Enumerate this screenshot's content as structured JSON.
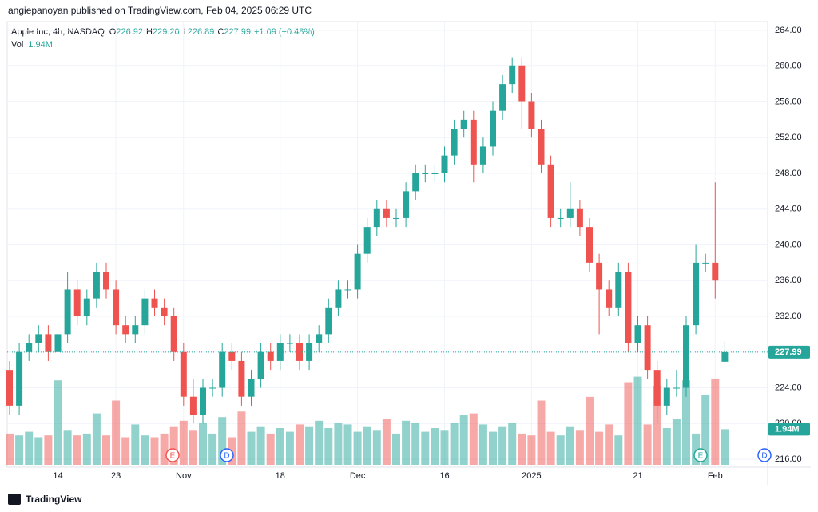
{
  "header": "angiepanoyan published on TradingView.com, Feb 04, 2025 06:29 UTC",
  "footer": "TradingView",
  "chart_data": {
    "type": "candlestick",
    "legend": {
      "symbol": "Apple Inc, 4h, NASDAQ",
      "fields": [
        {
          "key": "O",
          "value": "226.92"
        },
        {
          "key": "H",
          "value": "229.20"
        },
        {
          "key": "L",
          "value": "226.89"
        },
        {
          "key": "C",
          "value": "227.99"
        }
      ],
      "change": "+1.09 (+0.48%)",
      "volume_name": "Vol"
    },
    "volume_label": "1.94M",
    "up_color": "#26a69a",
    "down_color": "#ef5350",
    "open": [
      226,
      222,
      228,
      229,
      230,
      228,
      230,
      235,
      232,
      234,
      237,
      235,
      231,
      230,
      231,
      234,
      233,
      232,
      228,
      223,
      221,
      224,
      224,
      228,
      227,
      223,
      225,
      228,
      227,
      229,
      229,
      227,
      229,
      230,
      233,
      235,
      235,
      239,
      242,
      244,
      243,
      243,
      246,
      248,
      248,
      248,
      250,
      253,
      254,
      249,
      251,
      255,
      258,
      260,
      256,
      253,
      249,
      243,
      243,
      244,
      242,
      238,
      235,
      233,
      237,
      229,
      231,
      226,
      222,
      224,
      224,
      231,
      238,
      238,
      226.92
    ],
    "high": [
      227,
      229,
      230,
      231,
      231,
      231,
      237,
      236,
      235,
      238,
      238,
      236,
      232,
      232,
      235,
      235,
      234,
      233,
      229,
      225,
      225,
      225,
      229,
      229,
      228,
      226,
      229,
      229,
      230,
      230,
      230,
      230,
      231,
      234,
      236,
      236,
      240,
      243,
      245,
      245,
      244,
      247,
      249,
      249,
      249,
      251,
      254,
      255,
      255,
      252,
      256,
      259,
      261,
      261,
      257,
      254,
      250,
      244,
      247,
      245,
      243,
      239,
      236,
      238,
      238,
      232,
      232,
      227,
      225,
      226,
      232,
      240,
      239,
      247,
      229.2
    ],
    "low": [
      221,
      221,
      227,
      228,
      227,
      227,
      229,
      231,
      231,
      233,
      234,
      230,
      229,
      229,
      230,
      232,
      231,
      227,
      222,
      220,
      220,
      223,
      223,
      226,
      222,
      222,
      224,
      226,
      226,
      228,
      226,
      226,
      228,
      229,
      232,
      234,
      234,
      238,
      241,
      242,
      242,
      242,
      245,
      247,
      247,
      247,
      249,
      252,
      247,
      248,
      250,
      254,
      257,
      253,
      252,
      248,
      242,
      242,
      242,
      241,
      237,
      230,
      232,
      232,
      228,
      228,
      225,
      220,
      221,
      223,
      223,
      230,
      237,
      234,
      226.89
    ],
    "close": [
      222,
      228,
      229,
      230,
      228,
      230,
      235,
      232,
      234,
      237,
      235,
      231,
      230,
      231,
      234,
      233,
      232,
      228,
      223,
      221,
      224,
      224,
      228,
      227,
      223,
      225,
      228,
      227,
      229,
      229,
      227,
      229,
      230,
      233,
      235,
      235,
      239,
      242,
      244,
      243,
      243,
      246,
      248,
      248,
      248,
      250,
      253,
      254,
      249,
      251,
      255,
      258,
      260,
      256,
      253,
      249,
      243,
      243,
      244,
      242,
      238,
      235,
      233,
      237,
      229,
      231,
      226,
      222,
      224,
      224,
      231,
      238,
      238,
      236,
      227.99
    ],
    "volume": [
      1.7,
      1.6,
      1.8,
      1.5,
      1.6,
      4.6,
      1.9,
      1.6,
      1.7,
      2.8,
      1.6,
      3.5,
      1.5,
      2.2,
      1.6,
      1.5,
      1.7,
      2.1,
      2.4,
      1.9,
      2.3,
      1.7,
      2.6,
      1.5,
      2.9,
      1.8,
      2.1,
      1.7,
      2.0,
      1.8,
      2.2,
      2.1,
      2.4,
      2.0,
      2.3,
      2.2,
      1.8,
      2.1,
      1.9,
      2.5,
      1.7,
      2.4,
      2.3,
      1.8,
      2.0,
      1.9,
      2.3,
      2.7,
      2.8,
      2.2,
      1.8,
      2.1,
      2.3,
      1.7,
      1.6,
      3.5,
      1.8,
      1.6,
      2.1,
      1.9,
      3.7,
      1.8,
      2.2,
      1.6,
      4.5,
      4.8,
      2.2,
      4.3,
      2.0,
      2.5,
      4.6,
      1.7,
      3.8,
      4.7,
      1.94
    ],
    "ylim": [
      216,
      264
    ],
    "yticks": [
      {
        "value": 216,
        "label": "216.00"
      },
      {
        "value": 220,
        "label": "220.00"
      },
      {
        "value": 224,
        "label": "224.00"
      },
      {
        "value": 228,
        "label": "228.00"
      },
      {
        "value": 232,
        "label": "232.00"
      },
      {
        "value": 236,
        "label": "236.00"
      },
      {
        "value": 240,
        "label": "240.00"
      },
      {
        "value": 244,
        "label": "244.00"
      },
      {
        "value": 248,
        "label": "248.00"
      },
      {
        "value": 252,
        "label": "252.00"
      },
      {
        "value": 256,
        "label": "256.00"
      },
      {
        "value": 260,
        "label": "260.00"
      },
      {
        "value": 264,
        "label": "264.00"
      }
    ],
    "vlim": [
      0,
      5
    ],
    "xticks": [
      {
        "value": 5,
        "label": "14"
      },
      {
        "value": 11,
        "label": "23"
      },
      {
        "value": 18,
        "label": "Nov"
      },
      {
        "value": 28,
        "label": "18"
      },
      {
        "value": 36,
        "label": "Dec"
      },
      {
        "value": 45,
        "label": "16"
      },
      {
        "value": 54,
        "label": "2025"
      },
      {
        "value": 65,
        "label": "21"
      },
      {
        "value": 73,
        "label": "Feb"
      }
    ],
    "events": [
      "E",
      "D",
      "E",
      "D"
    ],
    "grid": true
  }
}
